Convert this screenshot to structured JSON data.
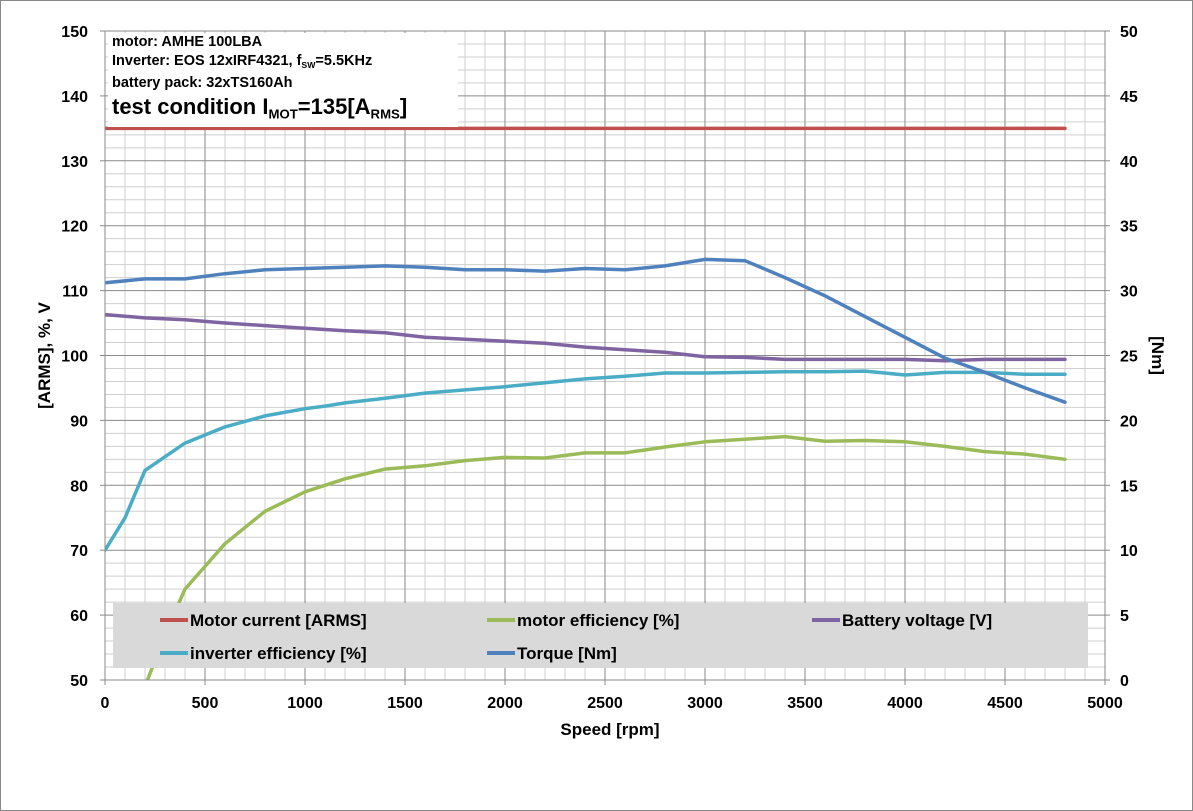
{
  "chart_data": {
    "type": "line",
    "xlabel": "Speed [rpm]",
    "ylabel_left": "[ARMS], %, V",
    "ylabel_right": "[Nm]",
    "xlim": [
      0,
      5000
    ],
    "ylim_left": [
      50,
      150
    ],
    "ylim_right": [
      0,
      50
    ],
    "xticks": [
      0,
      500,
      1000,
      1500,
      2000,
      2500,
      3000,
      3500,
      4000,
      4500,
      5000
    ],
    "yticks_left": [
      50,
      60,
      70,
      80,
      90,
      100,
      110,
      120,
      130,
      140,
      150
    ],
    "yticks_right": [
      0,
      5,
      10,
      15,
      20,
      25,
      30,
      35,
      40,
      45,
      50
    ],
    "grid": true,
    "legend_position": "bottom",
    "annotation": {
      "motor_prefix": "motor: ",
      "motor_value": "AMHE 100LBA",
      "inverter_prefix": "Inverter: EOS 12xIRF4321, f",
      "inverter_sub": "SW",
      "inverter_suffix": "=5.5KHz",
      "battery_line": "battery pack: 32xTS160Ah",
      "test_prefix": "test condition I",
      "test_sub1": "MOT",
      "test_mid": "=135[A",
      "test_sub2": "RMS",
      "test_suffix": "]"
    },
    "series": [
      {
        "name": "Motor current [ARMS]",
        "color": "#C0504D",
        "axis": "left",
        "x": [
          0,
          4800
        ],
        "y": [
          135,
          135
        ]
      },
      {
        "name": "motor efficiency [%]",
        "color": "#9BBB59",
        "axis": "left",
        "x": [
          200,
          300,
          400,
          500,
          600,
          800,
          1000,
          1200,
          1400,
          1600,
          1800,
          2000,
          2200,
          2400,
          2600,
          2800,
          3000,
          3200,
          3400,
          3600,
          3800,
          4000,
          4200,
          4400,
          4600,
          4800
        ],
        "y": [
          49,
          57,
          64,
          67.5,
          71,
          76,
          79,
          81,
          82.5,
          83,
          83.8,
          84.3,
          84.2,
          85,
          85,
          85.9,
          86.7,
          87.1,
          87.5,
          86.8,
          86.9,
          86.7,
          86,
          85.2,
          84.8,
          84
        ],
        "clip_to_plot": true
      },
      {
        "name": "Battery voltage [V]",
        "color": "#8064A2",
        "axis": "left",
        "x": [
          0,
          200,
          400,
          600,
          800,
          1000,
          1200,
          1400,
          1600,
          1800,
          2000,
          2200,
          2400,
          2600,
          2800,
          3000,
          3200,
          3400,
          3600,
          3800,
          4000,
          4200,
          4400,
          4600,
          4800
        ],
        "y": [
          106.3,
          105.8,
          105.5,
          105,
          104.6,
          104.2,
          103.8,
          103.5,
          102.8,
          102.5,
          102.2,
          101.9,
          101.3,
          100.9,
          100.5,
          99.8,
          99.7,
          99.4,
          99.4,
          99.4,
          99.4,
          99.2,
          99.4,
          99.4,
          99.4
        ]
      },
      {
        "name": "inverter efficiency [%]",
        "color": "#4BACC6",
        "axis": "left",
        "x": [
          0,
          100,
          200,
          400,
          600,
          800,
          1000,
          1100,
          1200,
          1400,
          1600,
          1800,
          2000,
          2200,
          2400,
          2600,
          2800,
          3000,
          3200,
          3400,
          3600,
          3800,
          4000,
          4200,
          4400,
          4600,
          4800
        ],
        "y": [
          70,
          75,
          82.3,
          86.5,
          89,
          90.7,
          91.8,
          92.2,
          92.7,
          93.4,
          94.2,
          94.7,
          95.2,
          95.8,
          96.4,
          96.8,
          97.3,
          97.3,
          97.4,
          97.5,
          97.5,
          97.6,
          97,
          97.4,
          97.4,
          97.1,
          97.1
        ]
      },
      {
        "name": "Torque [Nm]",
        "color": "#4F81BD",
        "axis": "right",
        "x": [
          0,
          200,
          400,
          600,
          800,
          1000,
          1200,
          1400,
          1600,
          1800,
          2000,
          2200,
          2400,
          2600,
          2800,
          3000,
          3200,
          3400,
          3600,
          3800,
          4000,
          4200,
          4400,
          4600,
          4800
        ],
        "y": [
          30.6,
          30.9,
          30.9,
          31.3,
          31.6,
          31.7,
          31.8,
          31.9,
          31.8,
          31.6,
          31.6,
          31.5,
          31.7,
          31.6,
          31.9,
          32.4,
          32.3,
          31,
          29.6,
          28,
          26.4,
          24.8,
          23.7,
          22.5,
          21.4
        ]
      }
    ]
  }
}
